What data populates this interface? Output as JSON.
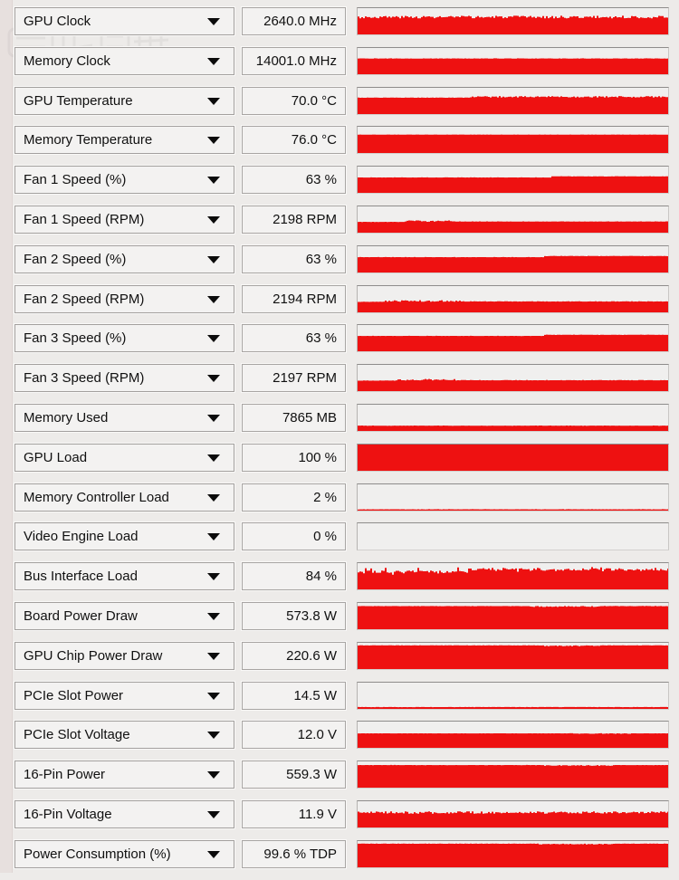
{
  "app": {
    "name": "GPU sensor monitor panel"
  },
  "colors": {
    "graph_red": "#ee1111",
    "box_bg": "#f3f2f1",
    "graph_bg": "#f0efee",
    "page_bg": "#edebe9",
    "text": "#101010"
  },
  "icons": {
    "dropdown_arrow": "chevron-down-icon"
  },
  "sensors": [
    {
      "label": "GPU Clock",
      "value": "2640.0 MHz",
      "graph": {
        "type": "area",
        "segments": [
          {
            "from": 0,
            "to": 1,
            "level": 0.66,
            "noise": 0.05
          }
        ]
      }
    },
    {
      "label": "Memory Clock",
      "value": "14001.0 MHz",
      "graph": {
        "type": "area",
        "segments": [
          {
            "from": 0,
            "to": 1,
            "level": 0.6,
            "noise": 0.006
          }
        ]
      }
    },
    {
      "label": "GPU Temperature",
      "value": "70.0 °C",
      "graph": {
        "type": "area",
        "segments": [
          {
            "from": 0,
            "to": 0.36,
            "level": 0.625,
            "noise": 0.005
          },
          {
            "from": 0.36,
            "to": 1,
            "level": 0.66,
            "noise": 0.028
          }
        ]
      }
    },
    {
      "label": "Memory Temperature",
      "value": "76.0 °C",
      "graph": {
        "type": "area",
        "segments": [
          {
            "from": 0,
            "to": 1,
            "level": 0.7,
            "noise": 0.005
          }
        ]
      }
    },
    {
      "label": "Fan 1 Speed (%)",
      "value": "63 %",
      "graph": {
        "type": "area",
        "segments": [
          {
            "from": 0,
            "to": 0.62,
            "level": 0.585,
            "noise": 0.004
          },
          {
            "from": 0.62,
            "to": 1,
            "level": 0.628,
            "noise": 0.006
          }
        ]
      }
    },
    {
      "label": "Fan 1 Speed (RPM)",
      "value": "2198 RPM",
      "graph": {
        "type": "area",
        "segments": [
          {
            "from": 0,
            "to": 0.15,
            "level": 0.41,
            "noise": 0.004
          },
          {
            "from": 0.15,
            "to": 0.3,
            "level": 0.44,
            "noise": 0.028
          },
          {
            "from": 0.3,
            "to": 1,
            "level": 0.425,
            "noise": 0.006
          }
        ]
      }
    },
    {
      "label": "Fan 2 Speed (%)",
      "value": "63 %",
      "graph": {
        "type": "area",
        "segments": [
          {
            "from": 0,
            "to": 0.6,
            "level": 0.585,
            "noise": 0.004
          },
          {
            "from": 0.6,
            "to": 1,
            "level": 0.628,
            "noise": 0.006
          }
        ]
      }
    },
    {
      "label": "Fan 2 Speed (RPM)",
      "value": "2194 RPM",
      "graph": {
        "type": "area",
        "segments": [
          {
            "from": 0,
            "to": 0.08,
            "level": 0.4,
            "noise": 0.004
          },
          {
            "from": 0.08,
            "to": 0.33,
            "level": 0.432,
            "noise": 0.03
          },
          {
            "from": 0.33,
            "to": 1,
            "level": 0.415,
            "noise": 0.006
          }
        ]
      }
    },
    {
      "label": "Fan 3 Speed (%)",
      "value": "63 %",
      "graph": {
        "type": "area",
        "segments": [
          {
            "from": 0,
            "to": 0.6,
            "level": 0.585,
            "noise": 0.004
          },
          {
            "from": 0.6,
            "to": 1,
            "level": 0.628,
            "noise": 0.006
          }
        ]
      }
    },
    {
      "label": "Fan 3 Speed (RPM)",
      "value": "2197 RPM",
      "graph": {
        "type": "area",
        "segments": [
          {
            "from": 0,
            "to": 0.12,
            "level": 0.4,
            "noise": 0.004
          },
          {
            "from": 0.12,
            "to": 0.32,
            "level": 0.432,
            "noise": 0.03
          },
          {
            "from": 0.32,
            "to": 1,
            "level": 0.415,
            "noise": 0.006
          }
        ]
      }
    },
    {
      "label": "Memory Used",
      "value": "7865 MB",
      "graph": {
        "type": "area",
        "segments": [
          {
            "from": 0,
            "to": 1,
            "level": 0.2,
            "noise": 0.006
          }
        ]
      }
    },
    {
      "label": "GPU Load",
      "value": "100 %",
      "graph": {
        "type": "area",
        "segments": [
          {
            "from": 0,
            "to": 1,
            "level": 1.0,
            "noise": 0
          }
        ]
      }
    },
    {
      "label": "Memory Controller Load",
      "value": "2 %",
      "graph": {
        "type": "area",
        "segments": [
          {
            "from": 0,
            "to": 1,
            "level": 0.05,
            "noise": 0.004
          }
        ]
      }
    },
    {
      "label": "Video Engine Load",
      "value": "0 %",
      "graph": {
        "type": "area",
        "segments": [
          {
            "from": 0,
            "to": 1,
            "level": 0.0,
            "noise": 0
          }
        ]
      }
    },
    {
      "label": "Bus Interface Load",
      "value": "84 %",
      "graph": {
        "type": "area",
        "segments": [
          {
            "from": 0,
            "to": 0.35,
            "level": 0.68,
            "noise": 0.05,
            "spike": 0.22
          },
          {
            "from": 0.35,
            "to": 1,
            "level": 0.755,
            "noise": 0.055,
            "spike": 0.08
          }
        ]
      }
    },
    {
      "label": "Board Power Draw",
      "value": "573.8 W",
      "graph": {
        "type": "area",
        "segments": [
          {
            "from": 0,
            "to": 0.55,
            "level": 0.88,
            "noise": 0.004
          },
          {
            "from": 0.55,
            "to": 0.78,
            "level": 0.865,
            "noise": 0.018
          },
          {
            "from": 0.78,
            "to": 1,
            "level": 0.88,
            "noise": 0.006
          }
        ]
      }
    },
    {
      "label": "GPU Chip Power Draw",
      "value": "220.6 W",
      "graph": {
        "type": "area",
        "segments": [
          {
            "from": 0,
            "to": 0.6,
            "level": 0.9,
            "noise": 0.004
          },
          {
            "from": 0.6,
            "to": 0.78,
            "level": 0.885,
            "noise": 0.015
          },
          {
            "from": 0.78,
            "to": 1,
            "level": 0.9,
            "noise": 0.004
          }
        ]
      }
    },
    {
      "label": "PCIe Slot Power",
      "value": "14.5 W",
      "graph": {
        "type": "area",
        "segments": [
          {
            "from": 0,
            "to": 1,
            "level": 0.07,
            "noise": 0.004
          }
        ]
      }
    },
    {
      "label": "PCIe Slot Voltage",
      "value": "12.0 V",
      "graph": {
        "type": "area",
        "segments": [
          {
            "from": 0,
            "to": 0.68,
            "level": 0.55,
            "noise": 0.003
          },
          {
            "from": 0.68,
            "to": 0.88,
            "level": 0.545,
            "noise": 0.012
          },
          {
            "from": 0.88,
            "to": 1,
            "level": 0.55,
            "noise": 0.003
          }
        ]
      }
    },
    {
      "label": "16-Pin Power",
      "value": "559.3 W",
      "graph": {
        "type": "area",
        "segments": [
          {
            "from": 0,
            "to": 0.6,
            "level": 0.86,
            "noise": 0.004
          },
          {
            "from": 0.6,
            "to": 0.82,
            "level": 0.845,
            "noise": 0.015
          },
          {
            "from": 0.82,
            "to": 1,
            "level": 0.86,
            "noise": 0.004
          }
        ]
      }
    },
    {
      "label": "16-Pin Voltage",
      "value": "11.9 V",
      "graph": {
        "type": "area",
        "segments": [
          {
            "from": 0,
            "to": 1,
            "level": 0.57,
            "noise": 0.045
          }
        ]
      }
    },
    {
      "label": "Power Consumption (%)",
      "value": "99.6 % TDP",
      "graph": {
        "type": "area",
        "segments": [
          {
            "from": 0,
            "to": 0.58,
            "level": 0.9,
            "noise": 0.004
          },
          {
            "from": 0.58,
            "to": 0.82,
            "level": 0.885,
            "noise": 0.015
          },
          {
            "from": 0.82,
            "to": 1,
            "level": 0.9,
            "noise": 0.005
          }
        ]
      }
    }
  ]
}
